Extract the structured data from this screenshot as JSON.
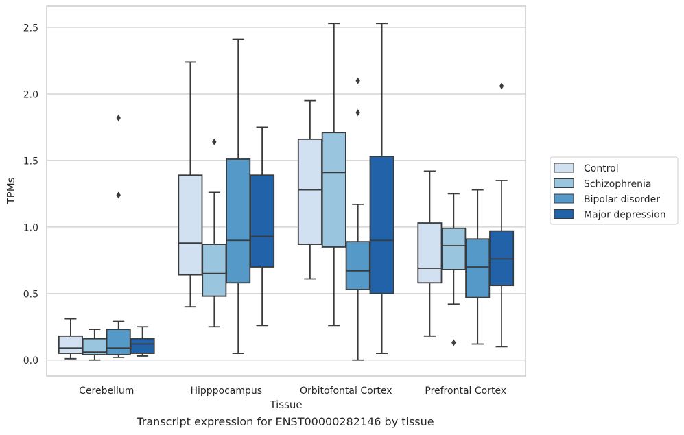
{
  "caption": "Transcript expression for ENST00000282146 by tissue",
  "chart_data": {
    "type": "box",
    "xlabel": "Tissue",
    "ylabel": "TPMs",
    "ylim": [
      -0.12,
      2.66
    ],
    "yticks": [
      0.0,
      0.5,
      1.0,
      1.5,
      2.0,
      2.5
    ],
    "ytick_labels": [
      "0.0",
      "0.5",
      "1.0",
      "1.5",
      "2.0",
      "2.5"
    ],
    "grid": "horizontal",
    "legend_position": "right",
    "categories": [
      "Cerebellum",
      "Hipppocampus",
      "Orbitofontal Cortex",
      "Prefrontal Cortex"
    ],
    "series": [
      {
        "name": "Control",
        "color": "#d1e1f2",
        "boxes": [
          {
            "whislo": 0.01,
            "q1": 0.05,
            "med": 0.09,
            "q3": 0.18,
            "whishi": 0.31,
            "fliers": []
          },
          {
            "whislo": 0.4,
            "q1": 0.64,
            "med": 0.88,
            "q3": 1.39,
            "whishi": 2.24,
            "fliers": []
          },
          {
            "whislo": 0.61,
            "q1": 0.87,
            "med": 1.28,
            "q3": 1.66,
            "whishi": 1.95,
            "fliers": []
          },
          {
            "whislo": 0.18,
            "q1": 0.58,
            "med": 0.69,
            "q3": 1.03,
            "whishi": 1.42,
            "fliers": []
          }
        ]
      },
      {
        "name": "Schizophrenia",
        "color": "#9ac5df",
        "boxes": [
          {
            "whislo": 0.0,
            "q1": 0.04,
            "med": 0.06,
            "q3": 0.16,
            "whishi": 0.23,
            "fliers": []
          },
          {
            "whislo": 0.25,
            "q1": 0.48,
            "med": 0.65,
            "q3": 0.87,
            "whishi": 1.26,
            "fliers": [
              1.64
            ]
          },
          {
            "whislo": 0.26,
            "q1": 0.85,
            "med": 1.41,
            "q3": 1.71,
            "whishi": 2.53,
            "fliers": []
          },
          {
            "whislo": 0.42,
            "q1": 0.68,
            "med": 0.86,
            "q3": 0.99,
            "whishi": 1.25,
            "fliers": [
              0.13
            ]
          }
        ]
      },
      {
        "name": "Bipolar disorder",
        "color": "#5599c8",
        "boxes": [
          {
            "whislo": 0.02,
            "q1": 0.04,
            "med": 0.09,
            "q3": 0.23,
            "whishi": 0.29,
            "fliers": [
              1.24,
              1.82
            ]
          },
          {
            "whislo": 0.05,
            "q1": 0.58,
            "med": 0.9,
            "q3": 1.51,
            "whishi": 2.41,
            "fliers": []
          },
          {
            "whislo": 0.0,
            "q1": 0.53,
            "med": 0.67,
            "q3": 0.89,
            "whishi": 1.17,
            "fliers": [
              1.86,
              2.1
            ]
          },
          {
            "whislo": 0.12,
            "q1": 0.47,
            "med": 0.7,
            "q3": 0.91,
            "whishi": 1.28,
            "fliers": []
          }
        ]
      },
      {
        "name": "Major depression",
        "color": "#2162a8",
        "boxes": [
          {
            "whislo": 0.03,
            "q1": 0.05,
            "med": 0.12,
            "q3": 0.16,
            "whishi": 0.25,
            "fliers": []
          },
          {
            "whislo": 0.26,
            "q1": 0.7,
            "med": 0.93,
            "q3": 1.39,
            "whishi": 1.75,
            "fliers": []
          },
          {
            "whislo": 0.05,
            "q1": 0.5,
            "med": 0.9,
            "q3": 1.53,
            "whishi": 2.53,
            "fliers": []
          },
          {
            "whislo": 0.1,
            "q1": 0.56,
            "med": 0.76,
            "q3": 0.97,
            "whishi": 1.35,
            "fliers": [
              2.06
            ]
          }
        ]
      }
    ]
  }
}
